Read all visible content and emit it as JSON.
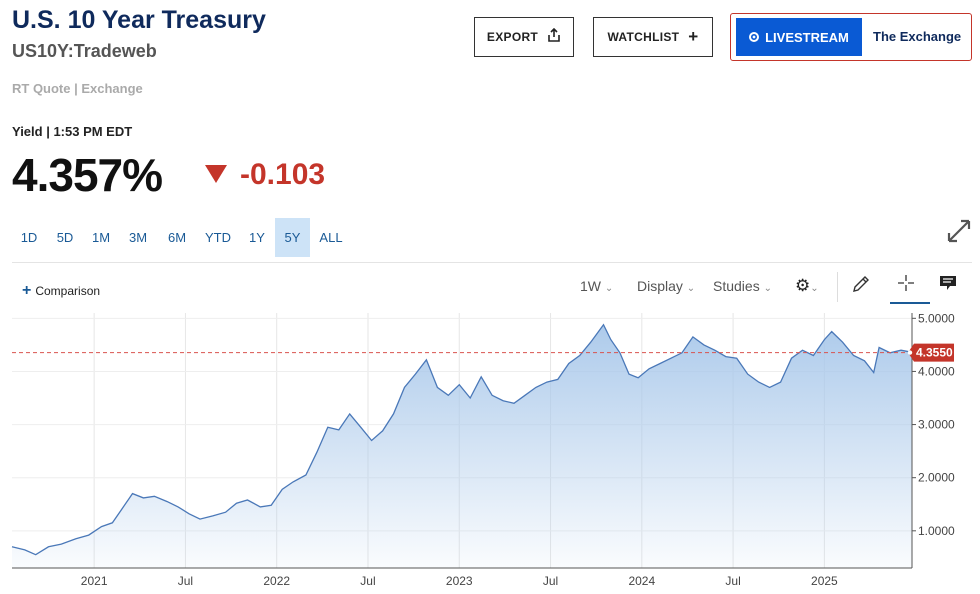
{
  "header": {
    "title": "U.S. 10 Year Treasury",
    "symbol": "US10Y:Tradeweb",
    "quote_source": "RT Quote | Exchange",
    "export_label": "EXPORT",
    "watchlist_label": "WATCHLIST",
    "livestream_label": "LIVESTREAM",
    "exchange_label": "The Exchange"
  },
  "quote": {
    "yield_label": "Yield | 1:53 PM EDT",
    "price": "4.357%",
    "change": "-0.103",
    "change_color": "#c4352a"
  },
  "ranges": [
    "1D",
    "5D",
    "1M",
    "3M",
    "6M",
    "YTD",
    "1Y",
    "5Y",
    "ALL"
  ],
  "active_range": "5Y",
  "toolbar": {
    "comparison_label": "Comparison",
    "interval_label": "1W",
    "display_label": "Display",
    "studies_label": "Studies"
  },
  "chart_data": {
    "type": "area",
    "x_tick_labels": [
      "2021",
      "Jul",
      "2022",
      "Jul",
      "2023",
      "Jul",
      "2024",
      "Jul",
      "2025"
    ],
    "y_tick_labels": [
      "5.0000",
      "4.0000",
      "3.0000",
      "2.0000",
      "1.0000"
    ],
    "ylim": [
      0.3,
      5.1
    ],
    "current_value_label": "4.3550",
    "current_value": 4.355,
    "fill_color": "#a9c8ea",
    "line_color": "#4a78b8",
    "series": [
      {
        "x": 2020.55,
        "y": 0.7
      },
      {
        "x": 2020.62,
        "y": 0.64
      },
      {
        "x": 2020.68,
        "y": 0.55
      },
      {
        "x": 2020.75,
        "y": 0.7
      },
      {
        "x": 2020.82,
        "y": 0.75
      },
      {
        "x": 2020.9,
        "y": 0.85
      },
      {
        "x": 2020.97,
        "y": 0.92
      },
      {
        "x": 2021.04,
        "y": 1.08
      },
      {
        "x": 2021.1,
        "y": 1.15
      },
      {
        "x": 2021.15,
        "y": 1.4
      },
      {
        "x": 2021.21,
        "y": 1.7
      },
      {
        "x": 2021.27,
        "y": 1.62
      },
      {
        "x": 2021.33,
        "y": 1.65
      },
      {
        "x": 2021.4,
        "y": 1.55
      },
      {
        "x": 2021.46,
        "y": 1.45
      },
      {
        "x": 2021.52,
        "y": 1.32
      },
      {
        "x": 2021.58,
        "y": 1.22
      },
      {
        "x": 2021.65,
        "y": 1.28
      },
      {
        "x": 2021.72,
        "y": 1.35
      },
      {
        "x": 2021.78,
        "y": 1.52
      },
      {
        "x": 2021.84,
        "y": 1.58
      },
      {
        "x": 2021.91,
        "y": 1.45
      },
      {
        "x": 2021.97,
        "y": 1.48
      },
      {
        "x": 2022.03,
        "y": 1.78
      },
      {
        "x": 2022.09,
        "y": 1.92
      },
      {
        "x": 2022.16,
        "y": 2.05
      },
      {
        "x": 2022.22,
        "y": 2.48
      },
      {
        "x": 2022.28,
        "y": 2.95
      },
      {
        "x": 2022.34,
        "y": 2.9
      },
      {
        "x": 2022.4,
        "y": 3.2
      },
      {
        "x": 2022.46,
        "y": 2.95
      },
      {
        "x": 2022.52,
        "y": 2.7
      },
      {
        "x": 2022.58,
        "y": 2.88
      },
      {
        "x": 2022.64,
        "y": 3.2
      },
      {
        "x": 2022.7,
        "y": 3.7
      },
      {
        "x": 2022.76,
        "y": 3.95
      },
      {
        "x": 2022.82,
        "y": 4.22
      },
      {
        "x": 2022.88,
        "y": 3.7
      },
      {
        "x": 2022.94,
        "y": 3.55
      },
      {
        "x": 2023.0,
        "y": 3.75
      },
      {
        "x": 2023.06,
        "y": 3.5
      },
      {
        "x": 2023.12,
        "y": 3.9
      },
      {
        "x": 2023.18,
        "y": 3.55
      },
      {
        "x": 2023.24,
        "y": 3.45
      },
      {
        "x": 2023.3,
        "y": 3.4
      },
      {
        "x": 2023.36,
        "y": 3.55
      },
      {
        "x": 2023.42,
        "y": 3.7
      },
      {
        "x": 2023.48,
        "y": 3.8
      },
      {
        "x": 2023.54,
        "y": 3.85
      },
      {
        "x": 2023.6,
        "y": 4.15
      },
      {
        "x": 2023.66,
        "y": 4.3
      },
      {
        "x": 2023.72,
        "y": 4.55
      },
      {
        "x": 2023.79,
        "y": 4.88
      },
      {
        "x": 2023.83,
        "y": 4.6
      },
      {
        "x": 2023.88,
        "y": 4.35
      },
      {
        "x": 2023.93,
        "y": 3.95
      },
      {
        "x": 2023.98,
        "y": 3.88
      },
      {
        "x": 2024.04,
        "y": 4.05
      },
      {
        "x": 2024.1,
        "y": 4.15
      },
      {
        "x": 2024.16,
        "y": 4.25
      },
      {
        "x": 2024.22,
        "y": 4.35
      },
      {
        "x": 2024.28,
        "y": 4.65
      },
      {
        "x": 2024.34,
        "y": 4.5
      },
      {
        "x": 2024.4,
        "y": 4.4
      },
      {
        "x": 2024.46,
        "y": 4.28
      },
      {
        "x": 2024.52,
        "y": 4.25
      },
      {
        "x": 2024.58,
        "y": 3.95
      },
      {
        "x": 2024.64,
        "y": 3.8
      },
      {
        "x": 2024.7,
        "y": 3.7
      },
      {
        "x": 2024.76,
        "y": 3.8
      },
      {
        "x": 2024.82,
        "y": 4.25
      },
      {
        "x": 2024.88,
        "y": 4.4
      },
      {
        "x": 2024.94,
        "y": 4.3
      },
      {
        "x": 2025.0,
        "y": 4.6
      },
      {
        "x": 2025.04,
        "y": 4.75
      },
      {
        "x": 2025.1,
        "y": 4.55
      },
      {
        "x": 2025.16,
        "y": 4.3
      },
      {
        "x": 2025.22,
        "y": 4.2
      },
      {
        "x": 2025.27,
        "y": 3.98
      },
      {
        "x": 2025.3,
        "y": 4.45
      },
      {
        "x": 2025.36,
        "y": 4.35
      },
      {
        "x": 2025.42,
        "y": 4.4
      },
      {
        "x": 2025.48,
        "y": 4.36
      }
    ]
  }
}
